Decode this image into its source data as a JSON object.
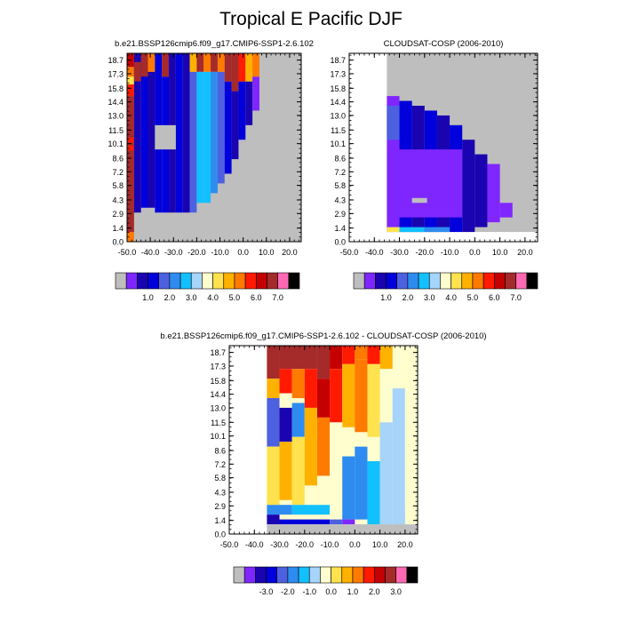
{
  "title": "Tropical E Pacific DJF",
  "chart_data": [
    {
      "type": "heatmap",
      "title": "b.e21.BSSP126cmip6.f09_g17.CMIP6-SSP1-2.6.102",
      "xlabel": "",
      "ylabel": "",
      "xlim": [
        -50,
        25
      ],
      "ylim": [
        0,
        19.4
      ],
      "x_ticks": [
        "-50.0",
        "-40.0",
        "-30.0",
        "-20.0",
        "-10.0",
        "0.0",
        "10.0",
        "20.0"
      ],
      "y_ticks": [
        "0.0",
        "1.4",
        "2.9",
        "4.3",
        "5.8",
        "7.2",
        "8.6",
        "10.1",
        "11.5",
        "13.0",
        "14.4",
        "15.8",
        "17.3",
        "18.7"
      ],
      "colorbar_labels": [
        "1.0",
        "2.0",
        "3.0",
        "4.0",
        "5.0",
        "6.0",
        "7.0"
      ],
      "background": "#bebebe",
      "cells": [
        {
          "x": [
            -50,
            -47
          ],
          "y": [
            0,
            1.0
          ],
          "level": 11
        },
        {
          "x": [
            -50,
            -47
          ],
          "y": [
            1.0,
            15.0
          ],
          "level": 14
        },
        {
          "x": [
            -50,
            -47
          ],
          "y": [
            9.4,
            9.9
          ],
          "level": 12
        },
        {
          "x": [
            -50,
            -47
          ],
          "y": [
            10.2,
            10.7
          ],
          "level": 12
        },
        {
          "x": [
            -50,
            -47
          ],
          "y": [
            15.0,
            16.2
          ],
          "level": 12
        },
        {
          "x": [
            -50,
            -47
          ],
          "y": [
            16.2,
            17.0
          ],
          "level": 9
        },
        {
          "x": [
            -50,
            -47
          ],
          "y": [
            17.0,
            18.0
          ],
          "level": 11
        },
        {
          "x": [
            -50,
            -47
          ],
          "y": [
            18.0,
            19.4
          ],
          "level": 13
        },
        {
          "x": [
            -47,
            -44
          ],
          "y": [
            3.0,
            19.4
          ],
          "level": 2
        },
        {
          "x": [
            -47,
            -44
          ],
          "y": [
            16.5,
            18.5
          ],
          "level": 14
        },
        {
          "x": [
            -44,
            -41
          ],
          "y": [
            3.5,
            19.4
          ],
          "level": 3
        },
        {
          "x": [
            -44,
            -41
          ],
          "y": [
            17.0,
            19.4
          ],
          "level": 14
        },
        {
          "x": [
            -41,
            -38
          ],
          "y": [
            3.5,
            17.5
          ],
          "level": 2
        },
        {
          "x": [
            -41,
            -38
          ],
          "y": [
            17.5,
            19.4
          ],
          "level": 11
        },
        {
          "x": [
            -38,
            -35
          ],
          "y": [
            3.0,
            19.4
          ],
          "level": 3
        },
        {
          "x": [
            -35,
            -32
          ],
          "y": [
            3.0,
            17.0
          ],
          "level": 3
        },
        {
          "x": [
            -35,
            -32
          ],
          "y": [
            17.0,
            19.4
          ],
          "level": 14
        },
        {
          "x": [
            -32,
            -29
          ],
          "y": [
            3.0,
            19.4
          ],
          "level": 2
        },
        {
          "x": [
            -29,
            -26
          ],
          "y": [
            3.0,
            19.4
          ],
          "level": 3
        },
        {
          "x": [
            -26,
            -23
          ],
          "y": [
            3.0,
            19.4
          ],
          "level": 2
        },
        {
          "x": [
            -23,
            -20
          ],
          "y": [
            3.0,
            17.5
          ],
          "level": 4
        },
        {
          "x": [
            -23,
            -20
          ],
          "y": [
            17.5,
            19.4
          ],
          "level": 10
        },
        {
          "x": [
            -20,
            -17
          ],
          "y": [
            4.0,
            17.5
          ],
          "level": 6
        },
        {
          "x": [
            -20,
            -17
          ],
          "y": [
            17.5,
            19.4
          ],
          "level": 14
        },
        {
          "x": [
            -17,
            -14
          ],
          "y": [
            4.0,
            17.5
          ],
          "level": 6
        },
        {
          "x": [
            -17,
            -14
          ],
          "y": [
            17.5,
            19.4
          ],
          "level": 11
        },
        {
          "x": [
            -14,
            -11
          ],
          "y": [
            5.0,
            17.5
          ],
          "level": 5
        },
        {
          "x": [
            -14,
            -11
          ],
          "y": [
            17.5,
            19.4
          ],
          "level": 14
        },
        {
          "x": [
            -11,
            -8
          ],
          "y": [
            6.0,
            17.5
          ],
          "level": 4
        },
        {
          "x": [
            -11,
            -8
          ],
          "y": [
            17.5,
            19.4
          ],
          "level": 11
        },
        {
          "x": [
            -8,
            -5
          ],
          "y": [
            7.0,
            16.5
          ],
          "level": 3
        },
        {
          "x": [
            -8,
            -5
          ],
          "y": [
            16.5,
            19.4
          ],
          "level": 14
        },
        {
          "x": [
            -5,
            -2
          ],
          "y": [
            8.5,
            15.5
          ],
          "level": 2
        },
        {
          "x": [
            -5,
            -2
          ],
          "y": [
            15.5,
            19.4
          ],
          "level": 14
        },
        {
          "x": [
            -2,
            1
          ],
          "y": [
            10.5,
            16.5
          ],
          "level": 3
        },
        {
          "x": [
            -2,
            1
          ],
          "y": [
            16.5,
            19.4
          ],
          "level": 12
        },
        {
          "x": [
            1,
            4
          ],
          "y": [
            12.0,
            16.5
          ],
          "level": 2
        },
        {
          "x": [
            1,
            4
          ],
          "y": [
            16.5,
            19.4
          ],
          "level": 10
        },
        {
          "x": [
            4,
            7
          ],
          "y": [
            13.5,
            17.0
          ],
          "level": 1
        },
        {
          "x": [
            4,
            7
          ],
          "y": [
            17.0,
            19.4
          ],
          "level": 11
        },
        {
          "x": [
            -38,
            -29
          ],
          "y": [
            9.5,
            12.0
          ],
          "level": 0
        }
      ]
    },
    {
      "type": "heatmap",
      "title": "CLOUDSAT-COSP (2006-2010)",
      "xlabel": "",
      "ylabel": "",
      "xlim": [
        -50,
        25
      ],
      "ylim": [
        0,
        19.4
      ],
      "x_ticks": [
        "-50.0",
        "-40.0",
        "-30.0",
        "-20.0",
        "-10.0",
        "0.0",
        "10.0",
        "20.0"
      ],
      "y_ticks": [
        "0.0",
        "1.4",
        "2.9",
        "4.3",
        "5.8",
        "7.2",
        "8.6",
        "10.1",
        "11.5",
        "13.0",
        "14.4",
        "15.8",
        "17.3",
        "18.7"
      ],
      "colorbar_labels": [
        "1.0",
        "2.0",
        "3.0",
        "4.0",
        "5.0",
        "6.0",
        "7.0"
      ],
      "background": "#bebebe",
      "cells": [
        {
          "x": [
            -50,
            -35
          ],
          "y": [
            0,
            19.4
          ],
          "level": -1
        },
        {
          "x": [
            -35,
            25
          ],
          "y": [
            0,
            1.0
          ],
          "level": -1
        },
        {
          "x": [
            -35,
            -30
          ],
          "y": [
            1.0,
            15.0
          ],
          "level": 1
        },
        {
          "x": [
            -35,
            -30
          ],
          "y": [
            10.5,
            14.0
          ],
          "level": 4
        },
        {
          "x": [
            -30,
            -25
          ],
          "y": [
            1.0,
            14.5
          ],
          "level": 3
        },
        {
          "x": [
            -25,
            -20
          ],
          "y": [
            1.0,
            14.0
          ],
          "level": 2
        },
        {
          "x": [
            -20,
            -15
          ],
          "y": [
            1.0,
            13.5
          ],
          "level": 3
        },
        {
          "x": [
            -15,
            -10
          ],
          "y": [
            1.0,
            13.0
          ],
          "level": 2
        },
        {
          "x": [
            -10,
            -5
          ],
          "y": [
            1.0,
            12.0
          ],
          "level": 3
        },
        {
          "x": [
            -5,
            0
          ],
          "y": [
            1.0,
            10.5
          ],
          "level": 2
        },
        {
          "x": [
            0,
            5
          ],
          "y": [
            1.5,
            9.0
          ],
          "level": 2
        },
        {
          "x": [
            5,
            10
          ],
          "y": [
            2.0,
            8.0
          ],
          "level": 1
        },
        {
          "x": [
            10,
            15
          ],
          "y": [
            2.5,
            4.0
          ],
          "level": 1
        },
        {
          "x": [
            -32,
            -5
          ],
          "y": [
            2.5,
            9.5
          ],
          "level": 1
        },
        {
          "x": [
            -25,
            -19
          ],
          "y": [
            4.0,
            4.5
          ],
          "level": 0
        },
        {
          "x": [
            -35,
            -30
          ],
          "y": [
            1.0,
            1.5
          ],
          "level": 9
        },
        {
          "x": [
            -30,
            -20
          ],
          "y": [
            1.0,
            1.5
          ],
          "level": 6
        },
        {
          "x": [
            -20,
            -10
          ],
          "y": [
            1.0,
            1.5
          ],
          "level": 5
        }
      ]
    },
    {
      "type": "heatmap",
      "title": "b.e21.BSSP126cmip6.f09_g17.CMIP6-SSP1-2.6.102 - CLOUDSAT-COSP (2006-2010)",
      "xlabel": "",
      "ylabel": "",
      "xlim": [
        -50,
        25
      ],
      "ylim": [
        0,
        19.4
      ],
      "x_ticks": [
        "-50.0",
        "-40.0",
        "-30.0",
        "-20.0",
        "-10.0",
        "0.0",
        "10.0",
        "20.0"
      ],
      "y_ticks": [
        "0.0",
        "1.4",
        "2.9",
        "4.3",
        "5.8",
        "7.2",
        "8.6",
        "10.1",
        "11.5",
        "13.0",
        "14.4",
        "15.8",
        "17.3",
        "18.7"
      ],
      "colorbar_labels": [
        "-3.0",
        "-2.0",
        "-1.0",
        "0.0",
        "1.0",
        "2.0",
        "3.0"
      ],
      "background": "#ffffff",
      "cells": [
        {
          "x": [
            -35,
            25
          ],
          "y": [
            1.0,
            19.4
          ],
          "level": 8
        },
        {
          "x": [
            -35,
            -30
          ],
          "y": [
            16.0,
            19.4
          ],
          "level": 14
        },
        {
          "x": [
            -30,
            -15
          ],
          "y": [
            17.0,
            19.4
          ],
          "level": 14
        },
        {
          "x": [
            -15,
            -10
          ],
          "y": [
            16.0,
            19.4
          ],
          "level": 14
        },
        {
          "x": [
            -10,
            -5
          ],
          "y": [
            17.0,
            19.4
          ],
          "level": 13
        },
        {
          "x": [
            -5,
            0
          ],
          "y": [
            17.5,
            19.4
          ],
          "level": 12
        },
        {
          "x": [
            0,
            5
          ],
          "y": [
            18.0,
            19.4
          ],
          "level": 11
        },
        {
          "x": [
            5,
            10
          ],
          "y": [
            17.5,
            19.4
          ],
          "level": 12
        },
        {
          "x": [
            10,
            15
          ],
          "y": [
            17.0,
            19.4
          ],
          "level": 10
        },
        {
          "x": [
            -35,
            -30
          ],
          "y": [
            14.0,
            16.0
          ],
          "level": 10
        },
        {
          "x": [
            -30,
            -25
          ],
          "y": [
            14.5,
            17.0
          ],
          "level": 12
        },
        {
          "x": [
            -25,
            -20
          ],
          "y": [
            14.0,
            17.0
          ],
          "level": 11
        },
        {
          "x": [
            -20,
            -15
          ],
          "y": [
            13.0,
            17.0
          ],
          "level": 12
        },
        {
          "x": [
            -15,
            -10
          ],
          "y": [
            12.0,
            16.0
          ],
          "level": 13
        },
        {
          "x": [
            -10,
            -5
          ],
          "y": [
            11.5,
            17.0
          ],
          "level": 12
        },
        {
          "x": [
            -5,
            0
          ],
          "y": [
            11.0,
            17.5
          ],
          "level": 10
        },
        {
          "x": [
            0,
            5
          ],
          "y": [
            10.5,
            18.0
          ],
          "level": 11
        },
        {
          "x": [
            5,
            10
          ],
          "y": [
            10.0,
            17.5
          ],
          "level": 9
        },
        {
          "x": [
            10,
            15
          ],
          "y": [
            11.5,
            17.0
          ],
          "level": 8
        },
        {
          "x": [
            -35,
            -30
          ],
          "y": [
            9.0,
            14.0
          ],
          "level": 4
        },
        {
          "x": [
            -30,
            -25
          ],
          "y": [
            9.5,
            13.0
          ],
          "level": 2
        },
        {
          "x": [
            -25,
            -20
          ],
          "y": [
            10.0,
            13.5
          ],
          "level": 5
        },
        {
          "x": [
            -35,
            -30
          ],
          "y": [
            3.0,
            9.0
          ],
          "level": 9
        },
        {
          "x": [
            -30,
            -25
          ],
          "y": [
            3.5,
            9.5
          ],
          "level": 10
        },
        {
          "x": [
            -25,
            -20
          ],
          "y": [
            3.0,
            10.0
          ],
          "level": 9
        },
        {
          "x": [
            -20,
            -15
          ],
          "y": [
            5.0,
            13.0
          ],
          "level": 10
        },
        {
          "x": [
            -15,
            -10
          ],
          "y": [
            6.0,
            12.0
          ],
          "level": 11
        },
        {
          "x": [
            -10,
            -5
          ],
          "y": [
            5.0,
            11.5
          ],
          "level": 8
        },
        {
          "x": [
            -5,
            0
          ],
          "y": [
            1.5,
            8.0
          ],
          "level": 5
        },
        {
          "x": [
            0,
            5
          ],
          "y": [
            1.5,
            9.0
          ],
          "level": 5
        },
        {
          "x": [
            5,
            10
          ],
          "y": [
            1.0,
            7.5
          ],
          "level": 6
        },
        {
          "x": [
            10,
            15
          ],
          "y": [
            1.0,
            11.5
          ],
          "level": 7
        },
        {
          "x": [
            15,
            20
          ],
          "y": [
            1.0,
            15.0
          ],
          "level": 7
        },
        {
          "x": [
            20,
            25
          ],
          "y": [
            2.5,
            17.0
          ],
          "level": 8
        },
        {
          "x": [
            -35,
            -25
          ],
          "y": [
            2.0,
            3.0
          ],
          "level": 5
        },
        {
          "x": [
            -25,
            -10
          ],
          "y": [
            2.0,
            3.0
          ],
          "level": 6
        },
        {
          "x": [
            -35,
            -30
          ],
          "y": [
            1.0,
            2.0
          ],
          "level": 2
        },
        {
          "x": [
            -30,
            -10
          ],
          "y": [
            1.0,
            1.5
          ],
          "level": 3
        },
        {
          "x": [
            -10,
            -5
          ],
          "y": [
            1.0,
            1.5
          ],
          "level": 4
        },
        {
          "x": [
            -5,
            0
          ],
          "y": [
            1.0,
            1.5
          ],
          "level": 1
        },
        {
          "x": [
            -35,
            25
          ],
          "y": [
            0,
            1.0
          ],
          "level": 0
        }
      ]
    }
  ],
  "colors": {
    "levels": [
      "#bebebe",
      "#7f26ff",
      "#1a03b0",
      "#0000dc",
      "#4d61e0",
      "#2e8cf0",
      "#12c0ff",
      "#a6d4fa",
      "#fffecf",
      "#ffe24d",
      "#ffb100",
      "#ff7a00",
      "#ff1a00",
      "#c40000",
      "#a52a2a"
    ],
    "top": "#ff69b4"
  },
  "colorbar_bins": 17
}
